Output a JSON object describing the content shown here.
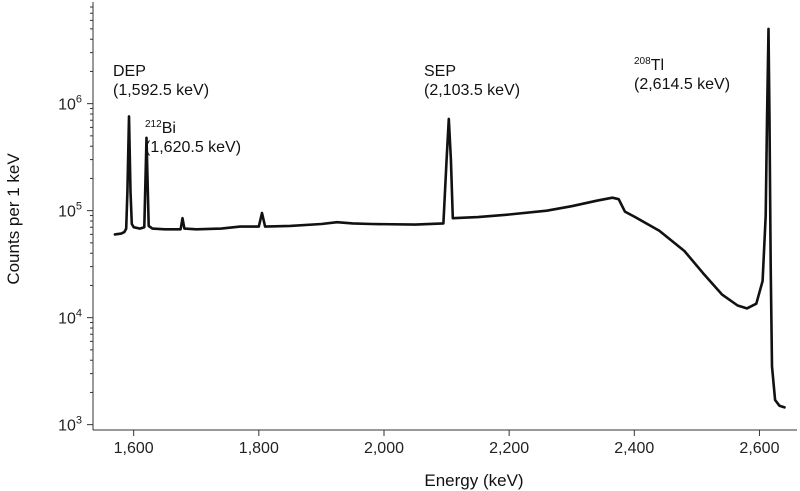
{
  "chart_data": {
    "type": "line",
    "title": "",
    "xlabel": "Energy (keV)",
    "ylabel": "Counts per 1 keV",
    "xlim": [
      1535,
      2660
    ],
    "ylim_log10": [
      2.95,
      6.95
    ],
    "y_scale": "log",
    "grid": false,
    "line_color": "#111111",
    "x_ticks": [
      {
        "value": 1600,
        "label": "1,600"
      },
      {
        "value": 1800,
        "label": "1,800"
      },
      {
        "value": 2000,
        "label": "2,000"
      },
      {
        "value": 2200,
        "label": "2,200"
      },
      {
        "value": 2400,
        "label": "2,400"
      },
      {
        "value": 2600,
        "label": "2,600"
      }
    ],
    "y_ticks": [
      {
        "value": 1000,
        "base": "10",
        "exp": "3"
      },
      {
        "value": 10000,
        "base": "10",
        "exp": "4"
      },
      {
        "value": 100000,
        "base": "10",
        "exp": "5"
      },
      {
        "value": 1000000,
        "base": "10",
        "exp": "6"
      }
    ],
    "annotations": [
      {
        "id": "dep",
        "lines": [
          "DEP",
          "(1,592.5 keV)"
        ],
        "sup": ""
      },
      {
        "id": "bi",
        "lines": [
          "Bi",
          "(1,620.5 keV)"
        ],
        "sup": "212"
      },
      {
        "id": "sep",
        "lines": [
          "SEP",
          "(2,103.5 keV)"
        ],
        "sup": ""
      },
      {
        "id": "tl",
        "lines": [
          "Tl",
          "(2,614.5 keV)"
        ],
        "sup": "208"
      }
    ],
    "series": [
      {
        "points": [
          [
            1570,
            60000
          ],
          [
            1580,
            61000
          ],
          [
            1585,
            63000
          ],
          [
            1588,
            68000
          ],
          [
            1590,
            150000
          ],
          [
            1592.5,
            760000
          ],
          [
            1595,
            150000
          ],
          [
            1597,
            75000
          ],
          [
            1600,
            70000
          ],
          [
            1610,
            68000
          ],
          [
            1617,
            70000
          ],
          [
            1620.5,
            480000
          ],
          [
            1624,
            72000
          ],
          [
            1630,
            68000
          ],
          [
            1650,
            67000
          ],
          [
            1675,
            67000
          ],
          [
            1678,
            85000
          ],
          [
            1681,
            68000
          ],
          [
            1700,
            67000
          ],
          [
            1740,
            68000
          ],
          [
            1770,
            71000
          ],
          [
            1800,
            71000
          ],
          [
            1805,
            95000
          ],
          [
            1810,
            71000
          ],
          [
            1850,
            72000
          ],
          [
            1900,
            75000
          ],
          [
            1925,
            78000
          ],
          [
            1950,
            76000
          ],
          [
            1980,
            75000
          ],
          [
            2050,
            74000
          ],
          [
            2095,
            76000
          ],
          [
            2100,
            300000
          ],
          [
            2103.5,
            720000
          ],
          [
            2107,
            300000
          ],
          [
            2110,
            85000
          ],
          [
            2150,
            87000
          ],
          [
            2200,
            92000
          ],
          [
            2260,
            100000
          ],
          [
            2300,
            110000
          ],
          [
            2340,
            124000
          ],
          [
            2365,
            132000
          ],
          [
            2375,
            128000
          ],
          [
            2385,
            98000
          ],
          [
            2400,
            88000
          ],
          [
            2440,
            65000
          ],
          [
            2480,
            42000
          ],
          [
            2510,
            26000
          ],
          [
            2540,
            16500
          ],
          [
            2565,
            13000
          ],
          [
            2580,
            12200
          ],
          [
            2595,
            13500
          ],
          [
            2605,
            22000
          ],
          [
            2610,
            90000
          ],
          [
            2612,
            700000
          ],
          [
            2614.5,
            5000000
          ],
          [
            2616,
            700000
          ],
          [
            2618,
            30000
          ],
          [
            2620,
            3500
          ],
          [
            2625,
            1700
          ],
          [
            2632,
            1500
          ],
          [
            2640,
            1450
          ]
        ]
      }
    ]
  }
}
